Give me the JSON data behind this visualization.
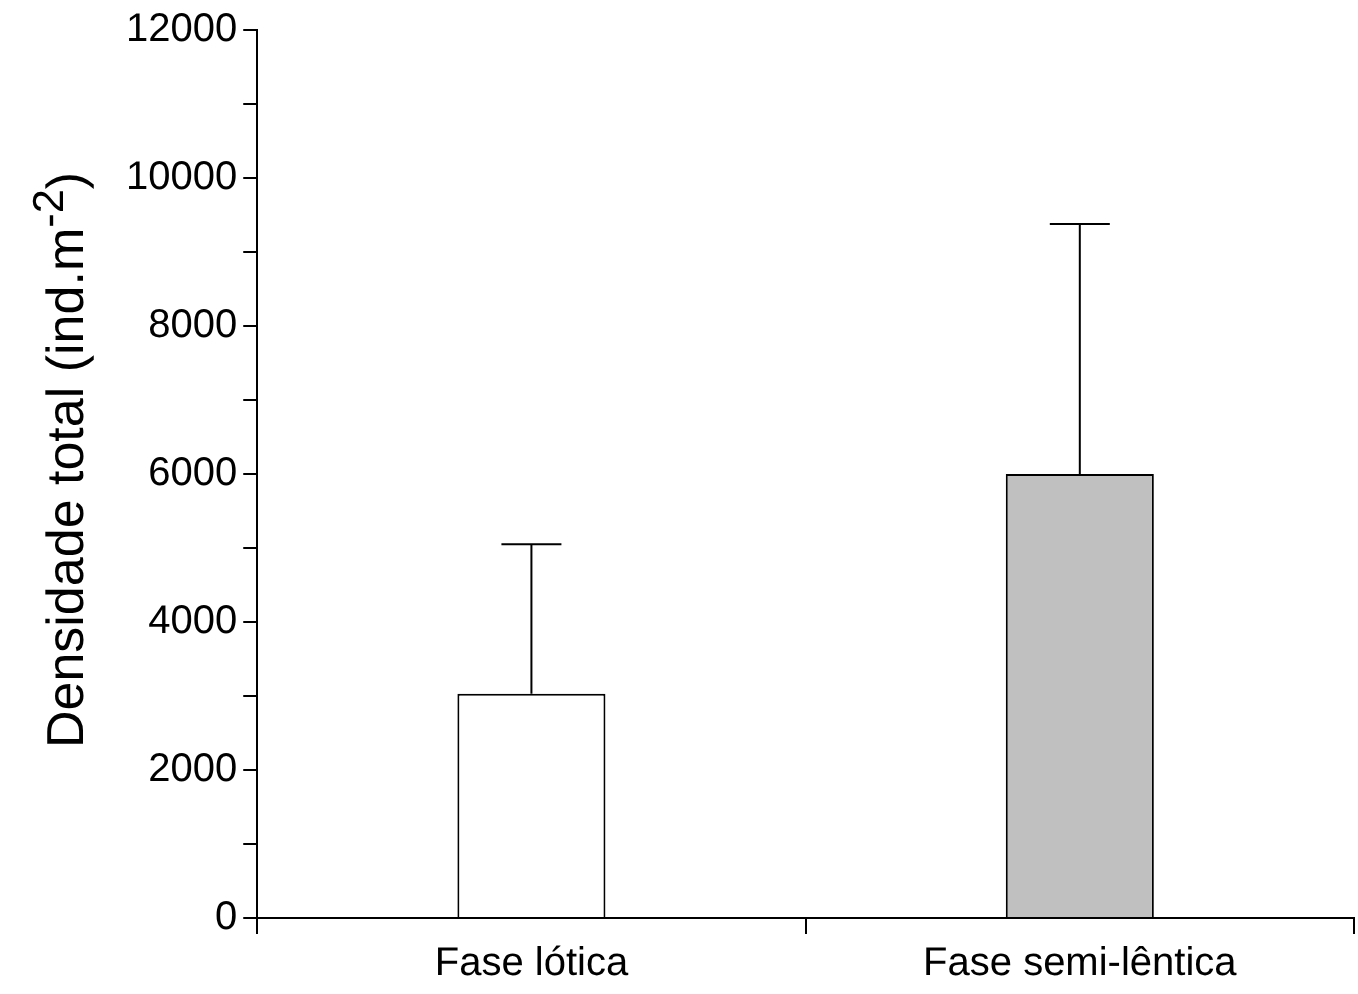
{
  "chart_data": {
    "type": "bar",
    "ylabel": "Densidade total (ind.m$^{-2}$)",
    "categories": [
      "Fase lótica",
      "Fase semi-lêntica"
    ],
    "values": [
      3030,
      6000
    ],
    "colors": [
      "#ffffff",
      "#c0c0c0"
    ],
    "errors": [
      [
        3030,
        5050
      ],
      [
        6000,
        9380
      ]
    ],
    "ylim": [
      0,
      12000
    ],
    "yticks": [
      0,
      {
        "value": 1000,
        "label": null
      },
      2000,
      {
        "value": 3000,
        "label": null
      },
      4000,
      {
        "value": 5000,
        "label": null
      },
      6000,
      {
        "value": 7000,
        "label": null
      },
      8000,
      {
        "value": 9000,
        "label": null
      },
      10000,
      {
        "value": 11000,
        "label": null
      },
      12000
    ],
    "grid": false,
    "legend": false
  }
}
